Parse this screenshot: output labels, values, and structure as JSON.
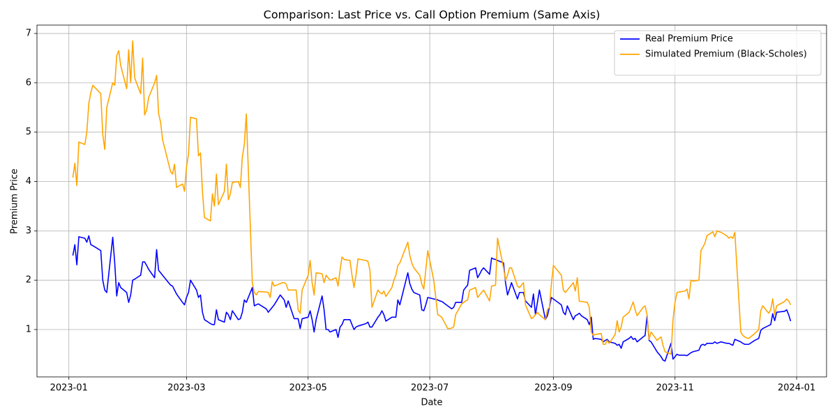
{
  "chart_data": {
    "type": "line",
    "title": "Comparison: Last Price vs. Call Option Premium (Same Axis)",
    "xlabel": "Date",
    "ylabel": "Premium Price",
    "x": [
      "2023-01-03",
      "2023-01-04",
      "2023-01-05",
      "2023-01-06",
      "2023-01-09",
      "2023-01-10",
      "2023-01-11",
      "2023-01-12",
      "2023-01-13",
      "2023-01-17",
      "2023-01-18",
      "2023-01-19",
      "2023-01-20",
      "2023-01-23",
      "2023-01-24",
      "2023-01-25",
      "2023-01-26",
      "2023-01-27",
      "2023-01-30",
      "2023-01-31",
      "2023-02-01",
      "2023-02-02",
      "2023-02-03",
      "2023-02-06",
      "2023-02-07",
      "2023-02-08",
      "2023-02-09",
      "2023-02-10",
      "2023-02-13",
      "2023-02-14",
      "2023-02-15",
      "2023-02-16",
      "2023-02-17",
      "2023-02-21",
      "2023-02-22",
      "2023-02-23",
      "2023-02-24",
      "2023-02-27",
      "2023-02-28",
      "2023-03-01",
      "2023-03-02",
      "2023-03-03",
      "2023-03-06",
      "2023-03-07",
      "2023-03-08",
      "2023-03-09",
      "2023-03-10",
      "2023-03-13",
      "2023-03-14",
      "2023-03-15",
      "2023-03-16",
      "2023-03-17",
      "2023-03-20",
      "2023-03-21",
      "2023-03-22",
      "2023-03-23",
      "2023-03-24",
      "2023-03-27",
      "2023-03-28",
      "2023-03-29",
      "2023-03-30",
      "2023-03-31",
      "2023-04-03",
      "2023-04-04",
      "2023-04-05",
      "2023-04-06",
      "2023-04-10",
      "2023-04-11",
      "2023-04-12",
      "2023-04-13",
      "2023-04-14",
      "2023-04-17",
      "2023-04-18",
      "2023-04-19",
      "2023-04-20",
      "2023-04-21",
      "2023-04-24",
      "2023-04-25",
      "2023-04-26",
      "2023-04-27",
      "2023-04-28",
      "2023-05-01",
      "2023-05-02",
      "2023-05-03",
      "2023-05-04",
      "2023-05-05",
      "2023-05-08",
      "2023-05-09",
      "2023-05-10",
      "2023-05-11",
      "2023-05-12",
      "2023-05-15",
      "2023-05-16",
      "2023-05-17",
      "2023-05-18",
      "2023-05-19",
      "2023-05-22",
      "2023-05-23",
      "2023-05-24",
      "2023-05-25",
      "2023-05-26",
      "2023-05-30",
      "2023-05-31",
      "2023-06-01",
      "2023-06-02",
      "2023-06-05",
      "2023-06-06",
      "2023-06-07",
      "2023-06-08",
      "2023-06-09",
      "2023-06-12",
      "2023-06-13",
      "2023-06-14",
      "2023-06-15",
      "2023-06-16",
      "2023-06-20",
      "2023-06-21",
      "2023-06-22",
      "2023-06-23",
      "2023-06-26",
      "2023-06-27",
      "2023-06-28",
      "2023-06-29",
      "2023-06-30",
      "2023-07-03",
      "2023-07-05",
      "2023-07-06",
      "2023-07-07",
      "2023-07-10",
      "2023-07-11",
      "2023-07-12",
      "2023-07-13",
      "2023-07-14",
      "2023-07-17",
      "2023-07-18",
      "2023-07-19",
      "2023-07-20",
      "2023-07-21",
      "2023-07-24",
      "2023-07-25",
      "2023-07-26",
      "2023-07-27",
      "2023-07-28",
      "2023-07-31",
      "2023-08-01",
      "2023-08-02",
      "2023-08-03",
      "2023-08-04",
      "2023-08-07",
      "2023-08-08",
      "2023-08-09",
      "2023-08-10",
      "2023-08-11",
      "2023-08-14",
      "2023-08-15",
      "2023-08-16",
      "2023-08-17",
      "2023-08-18",
      "2023-08-21",
      "2023-08-22",
      "2023-08-23",
      "2023-08-24",
      "2023-08-25",
      "2023-08-28",
      "2023-08-29",
      "2023-08-30",
      "2023-08-31",
      "2023-09-01",
      "2023-09-05",
      "2023-09-06",
      "2023-09-07",
      "2023-09-08",
      "2023-09-11",
      "2023-09-12",
      "2023-09-13",
      "2023-09-14",
      "2023-09-15",
      "2023-09-18",
      "2023-09-19",
      "2023-09-20",
      "2023-09-21",
      "2023-09-22",
      "2023-09-25",
      "2023-09-26",
      "2023-09-27",
      "2023-09-28",
      "2023-09-29",
      "2023-10-02",
      "2023-10-03",
      "2023-10-04",
      "2023-10-05",
      "2023-10-06",
      "2023-10-09",
      "2023-10-10",
      "2023-10-11",
      "2023-10-12",
      "2023-10-13",
      "2023-10-16",
      "2023-10-17",
      "2023-10-18",
      "2023-10-19",
      "2023-10-20",
      "2023-10-23",
      "2023-10-24",
      "2023-10-25",
      "2023-10-26",
      "2023-10-27",
      "2023-10-30",
      "2023-10-31",
      "2023-11-01",
      "2023-11-02",
      "2023-11-03",
      "2023-11-06",
      "2023-11-07",
      "2023-11-08",
      "2023-11-09",
      "2023-11-10",
      "2023-11-13",
      "2023-11-14",
      "2023-11-15",
      "2023-11-16",
      "2023-11-17",
      "2023-11-20",
      "2023-11-21",
      "2023-11-22",
      "2023-11-24",
      "2023-11-27",
      "2023-11-28",
      "2023-11-29",
      "2023-11-30",
      "2023-12-01",
      "2023-12-04",
      "2023-12-05",
      "2023-12-06",
      "2023-12-07",
      "2023-12-08",
      "2023-12-11",
      "2023-12-12",
      "2023-12-13",
      "2023-12-14",
      "2023-12-15",
      "2023-12-18",
      "2023-12-19",
      "2023-12-20",
      "2023-12-21",
      "2023-12-22",
      "2023-12-26",
      "2023-12-27",
      "2023-12-28",
      "2023-12-29"
    ],
    "series": [
      {
        "name": "Real Premium Price",
        "color": "#0000ff",
        "values": [
          2.5,
          2.72,
          2.31,
          2.88,
          2.85,
          2.77,
          2.9,
          2.72,
          2.7,
          2.6,
          2.0,
          1.8,
          1.75,
          2.87,
          2.35,
          1.68,
          1.95,
          1.85,
          1.75,
          1.55,
          1.7,
          2.0,
          2.02,
          2.1,
          2.37,
          2.37,
          2.3,
          2.22,
          2.05,
          2.62,
          2.2,
          2.15,
          2.1,
          1.9,
          1.88,
          1.8,
          1.72,
          1.55,
          1.5,
          1.65,
          1.75,
          2.0,
          1.8,
          1.65,
          1.7,
          1.35,
          1.2,
          1.12,
          1.1,
          1.1,
          1.4,
          1.2,
          1.15,
          1.35,
          1.3,
          1.2,
          1.38,
          1.2,
          1.22,
          1.35,
          1.6,
          1.55,
          1.85,
          1.48,
          1.5,
          1.52,
          1.42,
          1.35,
          1.4,
          1.45,
          1.5,
          1.7,
          1.65,
          1.6,
          1.45,
          1.58,
          1.22,
          1.22,
          1.22,
          1.02,
          1.22,
          1.25,
          1.38,
          1.2,
          0.95,
          1.2,
          1.68,
          1.4,
          1.0,
          1.0,
          0.95,
          1.0,
          0.84,
          1.05,
          1.1,
          1.2,
          1.2,
          1.1,
          1.0,
          1.05,
          1.07,
          1.12,
          1.15,
          1.05,
          1.05,
          1.25,
          1.3,
          1.38,
          1.3,
          1.17,
          1.25,
          1.25,
          1.25,
          1.6,
          1.5,
          2.15,
          1.93,
          1.82,
          1.75,
          1.7,
          1.4,
          1.38,
          1.5,
          1.65,
          1.62,
          1.6,
          1.58,
          1.57,
          1.48,
          1.45,
          1.42,
          1.45,
          1.55,
          1.55,
          1.8,
          1.85,
          1.9,
          2.2,
          2.25,
          2.05,
          2.12,
          2.2,
          2.25,
          2.12,
          2.45,
          2.43,
          2.42,
          2.4,
          2.35,
          1.95,
          1.7,
          1.82,
          1.95,
          1.62,
          1.75,
          1.75,
          1.75,
          1.58,
          1.45,
          1.72,
          1.3,
          1.55,
          1.8,
          1.2,
          1.28,
          1.45,
          1.65,
          1.62,
          1.5,
          1.35,
          1.3,
          1.48,
          1.2,
          1.28,
          1.3,
          1.33,
          1.28,
          1.2,
          1.1,
          1.25,
          0.8,
          0.82,
          0.8,
          0.75,
          0.78,
          0.8,
          0.75,
          0.72,
          0.68,
          0.7,
          0.62,
          0.75,
          0.82,
          0.86,
          0.8,
          0.82,
          0.75,
          0.85,
          0.88,
          1.28,
          0.78,
          0.75,
          0.55,
          0.5,
          0.45,
          0.38,
          0.36,
          0.72,
          0.4,
          0.45,
          0.5,
          0.48,
          0.48,
          0.47,
          0.5,
          0.53,
          0.55,
          0.58,
          0.68,
          0.7,
          0.68,
          0.72,
          0.72,
          0.75,
          0.72,
          0.75,
          0.72,
          0.72,
          0.7,
          0.68,
          0.8,
          0.75,
          0.72,
          0.7,
          0.7,
          0.7,
          0.78,
          0.8,
          0.82,
          0.98,
          1.02,
          1.08,
          1.1,
          1.32,
          1.18,
          1.35,
          1.37,
          1.4,
          1.3,
          1.17
        ]
      },
      {
        "name": "Simulated Premium (Black-Scholes)",
        "color": "#ffa500",
        "values": [
          4.08,
          4.37,
          3.92,
          4.8,
          4.75,
          5.0,
          5.58,
          5.8,
          5.95,
          5.78,
          4.95,
          4.65,
          5.5,
          6.0,
          5.95,
          6.55,
          6.65,
          6.35,
          5.88,
          6.67,
          6.0,
          6.85,
          6.1,
          5.78,
          6.5,
          5.35,
          5.45,
          5.7,
          6.0,
          6.15,
          5.38,
          5.2,
          4.85,
          4.2,
          4.15,
          4.35,
          3.88,
          3.95,
          3.8,
          4.3,
          4.55,
          5.3,
          5.27,
          4.52,
          4.58,
          3.8,
          3.27,
          3.2,
          3.75,
          3.5,
          4.15,
          3.53,
          3.8,
          4.35,
          3.63,
          3.75,
          3.98,
          4.0,
          3.88,
          4.5,
          4.75,
          5.37,
          1.95,
          1.75,
          1.7,
          1.77,
          1.76,
          1.75,
          1.65,
          1.97,
          1.88,
          1.93,
          1.95,
          1.95,
          1.92,
          1.8,
          1.8,
          1.8,
          1.4,
          1.33,
          1.8,
          2.1,
          2.4,
          1.95,
          1.7,
          2.15,
          2.13,
          1.95,
          2.1,
          2.05,
          2.0,
          2.05,
          1.88,
          2.2,
          2.47,
          2.42,
          2.4,
          2.1,
          1.85,
          2.1,
          2.43,
          2.4,
          2.38,
          2.2,
          1.45,
          1.8,
          1.75,
          1.72,
          1.78,
          1.67,
          1.85,
          2.0,
          2.1,
          2.3,
          2.35,
          2.77,
          2.5,
          2.35,
          2.25,
          2.1,
          1.92,
          1.82,
          2.2,
          2.6,
          2.0,
          1.3,
          1.28,
          1.25,
          1.02,
          1.02,
          1.03,
          1.05,
          1.3,
          1.52,
          1.55,
          1.58,
          1.6,
          1.8,
          1.85,
          1.65,
          1.7,
          1.75,
          1.8,
          1.58,
          1.88,
          1.89,
          1.9,
          2.85,
          2.25,
          2.0,
          2.1,
          2.25,
          2.25,
          1.88,
          1.85,
          1.9,
          1.95,
          1.5,
          1.22,
          1.25,
          1.3,
          1.35,
          1.3,
          1.2,
          1.4,
          1.45,
          1.92,
          2.3,
          2.1,
          1.8,
          1.75,
          1.8,
          1.95,
          1.78,
          2.05,
          1.57,
          1.57,
          1.55,
          1.45,
          0.95,
          0.88,
          0.9,
          0.92,
          0.7,
          0.7,
          0.78,
          0.72,
          0.9,
          1.18,
          0.95,
          1.05,
          1.25,
          1.35,
          1.45,
          1.56,
          1.4,
          1.28,
          1.45,
          1.48,
          1.3,
          0.8,
          0.95,
          0.78,
          0.82,
          0.85,
          0.68,
          0.55,
          0.5,
          1.2,
          1.55,
          1.75,
          1.76,
          1.78,
          1.82,
          1.62,
          2.0,
          1.98,
          2.0,
          2.6,
          2.67,
          2.75,
          2.9,
          2.98,
          2.88,
          3.0,
          2.97,
          2.9,
          2.85,
          2.88,
          2.85,
          2.97,
          0.95,
          0.88,
          0.85,
          0.83,
          0.82,
          0.92,
          0.96,
          1.0,
          1.38,
          1.48,
          1.33,
          1.4,
          1.62,
          1.3,
          1.48,
          1.57,
          1.62,
          1.58,
          1.5
        ]
      }
    ],
    "xlim": [
      "2022-12-16",
      "2024-01-16"
    ],
    "xticks": [
      {
        "value": "2023-01-01",
        "label": "2023-01"
      },
      {
        "value": "2023-03-01",
        "label": "2023-03"
      },
      {
        "value": "2023-05-01",
        "label": "2023-05"
      },
      {
        "value": "2023-07-01",
        "label": "2023-07"
      },
      {
        "value": "2023-09-01",
        "label": "2023-09"
      },
      {
        "value": "2023-11-01",
        "label": "2023-11"
      },
      {
        "value": "2024-01-01",
        "label": "2024-01"
      }
    ],
    "ylim": [
      0.04,
      7.17
    ],
    "yticks": [
      1,
      2,
      3,
      4,
      5,
      6,
      7
    ],
    "grid": true,
    "legend": "upper-right"
  }
}
